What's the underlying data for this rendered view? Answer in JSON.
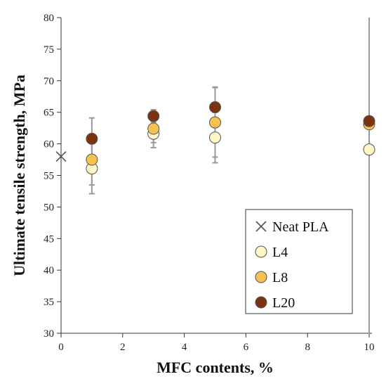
{
  "chart_data": {
    "type": "scatter",
    "title": "",
    "xlabel": "MFC contents, %",
    "ylabel": "Ultimate tensile strength, MPa",
    "xlim": [
      0,
      10
    ],
    "ylim": [
      30,
      80
    ],
    "xticks": [
      "0",
      "2",
      "4",
      "6",
      "8",
      "10"
    ],
    "yticks": [
      "30",
      "35",
      "40",
      "45",
      "50",
      "55",
      "60",
      "65",
      "70",
      "75",
      "80"
    ],
    "grid": false,
    "legend_position": "bottom-right",
    "series": [
      {
        "name": "Neat PLA",
        "marker": "x",
        "color": "#555555",
        "points": [
          {
            "x": 0,
            "y": 58,
            "err": 0
          }
        ]
      },
      {
        "name": "L4",
        "marker": "circle",
        "color": "#FFF7C8",
        "points": [
          {
            "x": 1,
            "y": 56.1,
            "err": 4.0
          },
          {
            "x": 3,
            "y": 61.6,
            "err": 2.2
          },
          {
            "x": 5,
            "y": 61.0,
            "err": 4.0
          },
          {
            "x": 10,
            "y": 59.1,
            "err": 29.1
          }
        ]
      },
      {
        "name": "L8",
        "marker": "circle",
        "color": "#F5C150",
        "points": [
          {
            "x": 1,
            "y": 57.5,
            "err": 4.0
          },
          {
            "x": 3,
            "y": 62.4,
            "err": 2.2
          },
          {
            "x": 5,
            "y": 63.4,
            "err": 5.5
          },
          {
            "x": 10,
            "y": 63.1,
            "err": 33.1
          }
        ]
      },
      {
        "name": "L20",
        "marker": "circle",
        "color": "#7A3410",
        "points": [
          {
            "x": 1,
            "y": 60.8,
            "err": 3.3
          },
          {
            "x": 3,
            "y": 64.4,
            "err": 1.0
          },
          {
            "x": 5,
            "y": 65.8,
            "err": 3.2
          },
          {
            "x": 10,
            "y": 63.6,
            "err": 33.6
          }
        ]
      }
    ]
  }
}
